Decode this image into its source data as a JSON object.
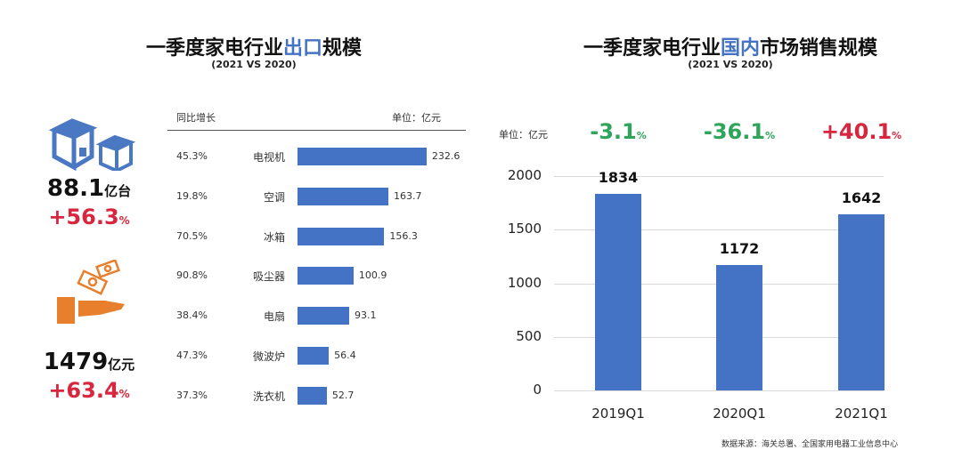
{
  "left": {
    "title_pre": "一季度家电行业",
    "title_hl": "出口",
    "title_post": "规模",
    "subtitle": "(2021 VS 2020)",
    "volume": {
      "value": "88.1",
      "unit": "亿台",
      "change": "+56.3",
      "pct": "%"
    },
    "amount": {
      "value": "1479",
      "unit": "亿元",
      "change": "+63.4",
      "pct": "%"
    },
    "growth_header": "同比增长",
    "unit_label": "单位：亿元"
  },
  "right": {
    "title_pre": "一季度家电行业",
    "title_hl": "国内",
    "title_post": "市场销售规模",
    "subtitle": "(2021 VS 2020)",
    "unit_label": "单位：亿元",
    "source": "数据来源：海关总署、全国家用电器工业信息中心"
  },
  "colors": {
    "bar": "#4472c4",
    "positive": "#d7263d",
    "negative": "#2ea55a",
    "box_icon": "#4a78c2",
    "money_icon": "#e87f2d"
  },
  "chart_data": [
    {
      "type": "bar",
      "orientation": "horizontal",
      "categories": [
        "电视机",
        "空调",
        "冰箱",
        "吸尘器",
        "电扇",
        "微波炉",
        "洗衣机"
      ],
      "values": [
        232.6,
        163.7,
        156.3,
        100.9,
        93.1,
        56.4,
        52.7
      ],
      "growth": [
        "45.3%",
        "19.8%",
        "70.5%",
        "90.8%",
        "38.4%",
        "47.3%",
        "37.3%"
      ],
      "unit": "亿元"
    },
    {
      "type": "bar",
      "categories": [
        "2019Q1",
        "2020Q1",
        "2021Q1"
      ],
      "values": [
        1834,
        1172,
        1642
      ],
      "growth": [
        {
          "value": "-3.1",
          "pct": "%",
          "sign": "negative"
        },
        {
          "value": "-36.1",
          "pct": "%",
          "sign": "negative"
        },
        {
          "value": "+40.1",
          "pct": "%",
          "sign": "positive"
        }
      ],
      "ylim": [
        0,
        2000
      ],
      "yticks": [
        "0",
        "500",
        "1000",
        "1500",
        "2000"
      ],
      "grid": true
    }
  ]
}
